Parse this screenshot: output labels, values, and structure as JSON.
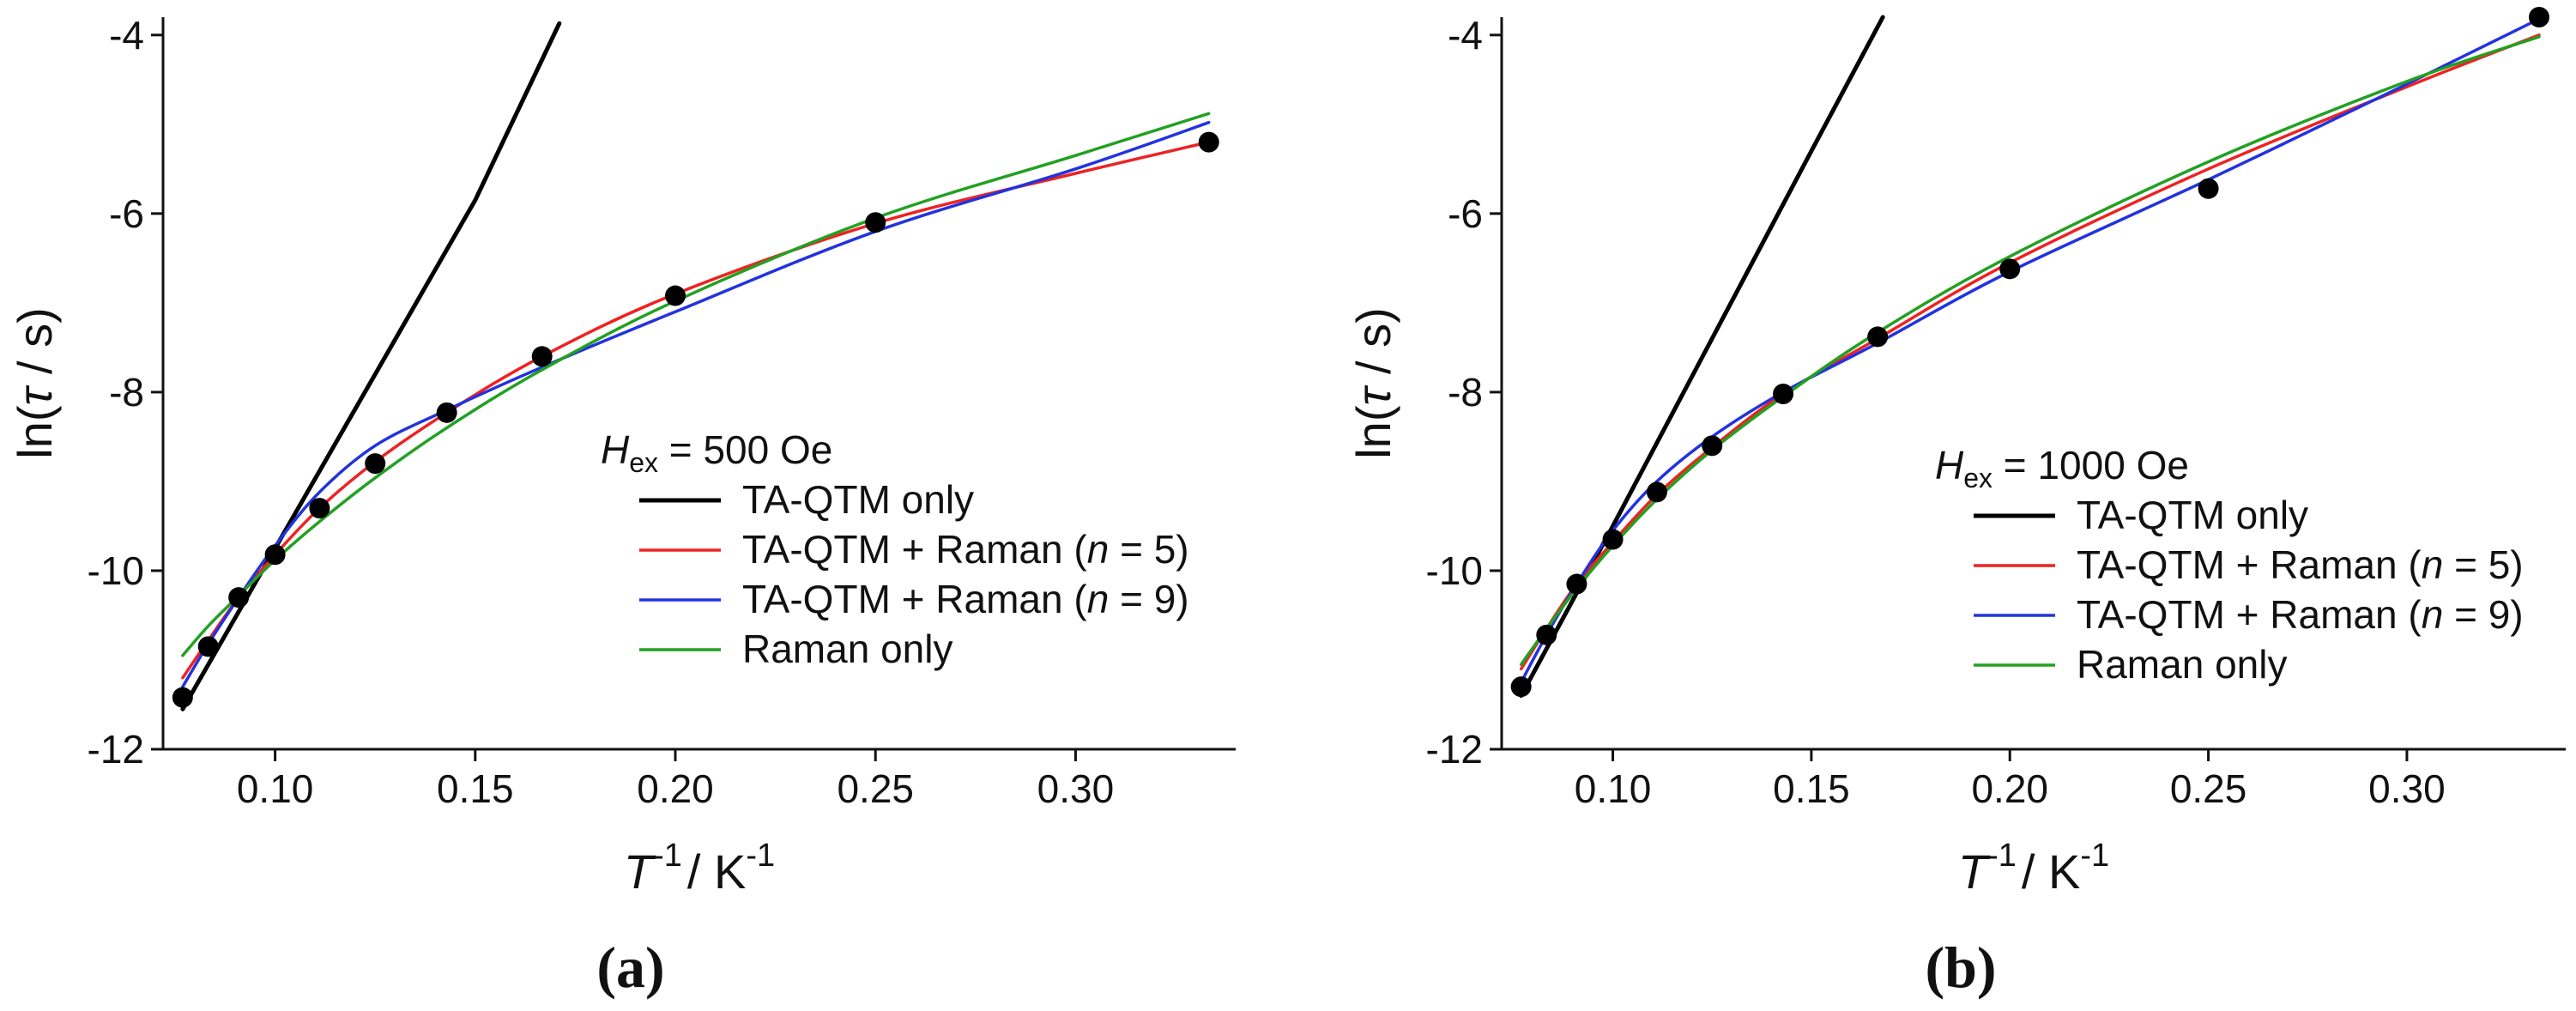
{
  "chart_data": [
    {
      "type": "scatter",
      "panel_label": "(a)",
      "title": "",
      "xlabel": {
        "T": "T",
        "exp1": "-1",
        "sep": "/ K",
        "exp2": "-1"
      },
      "ylabel": {
        "pre": "ln(",
        "tau": "τ",
        "post": " / s)"
      },
      "xlim": [
        0.072,
        0.34
      ],
      "ylim": [
        -12,
        -3.8
      ],
      "xticks": [
        0.1,
        0.15,
        0.2,
        0.25,
        0.3
      ],
      "xtick_labels": [
        "0.10",
        "0.15",
        "0.20",
        "0.25",
        "0.30"
      ],
      "yticks": [
        -12,
        -10,
        -8,
        -6,
        -4
      ],
      "ytick_labels": [
        "-12",
        "-10",
        "-8",
        "-6",
        "-4"
      ],
      "grid": false,
      "legend_title": {
        "H": "H",
        "sub": "ex",
        "rest": " = 500 Oe"
      },
      "legend_position": "center-right",
      "legend_items": [
        {
          "key": "ta",
          "parts": [
            "TA-QTM only"
          ],
          "color": "#000000"
        },
        {
          "key": "r5",
          "parts": [
            "TA-QTM + Raman (",
            "n",
            " = 5)"
          ],
          "color": "#ee2222"
        },
        {
          "key": "r9",
          "parts": [
            "TA-QTM + Raman (",
            "n",
            " = 9)"
          ],
          "color": "#2233dd"
        },
        {
          "key": "raman",
          "parts": [
            "Raman only"
          ],
          "color": "#22a022"
        }
      ],
      "points": {
        "name": "data",
        "x": [
          0.0769,
          0.0833,
          0.0909,
          0.1,
          0.1111,
          0.125,
          0.1429,
          0.1667,
          0.2,
          0.25,
          0.3333
        ],
        "y": [
          -11.42,
          -10.85,
          -10.3,
          -9.82,
          -9.3,
          -8.8,
          -8.23,
          -7.6,
          -6.92,
          -6.1,
          -5.2
        ],
        "color": "#000000"
      },
      "series": [
        {
          "key": "ta",
          "name": "TA-QTM only",
          "color": "#000000",
          "x": [
            0.0769,
            0.1,
            0.125,
            0.15,
            0.171
          ],
          "y": [
            -11.55,
            -9.75,
            -7.8,
            -5.85,
            -3.87
          ]
        },
        {
          "key": "r5",
          "name": "TA-QTM + Raman (n = 5)",
          "color": "#ee2222",
          "x": [
            0.0769,
            0.0833,
            0.0909,
            0.1,
            0.1111,
            0.125,
            0.1429,
            0.1667,
            0.2,
            0.25,
            0.3,
            0.3333
          ],
          "y": [
            -11.2,
            -10.78,
            -10.3,
            -9.82,
            -9.3,
            -8.78,
            -8.23,
            -7.6,
            -6.9,
            -6.11,
            -5.55,
            -5.2
          ]
        },
        {
          "key": "r9",
          "name": "TA-QTM + Raman (n = 9)",
          "color": "#2233dd",
          "x": [
            0.0769,
            0.0833,
            0.0909,
            0.1,
            0.1111,
            0.125,
            0.1429,
            0.1667,
            0.2,
            0.25,
            0.3,
            0.3333
          ],
          "y": [
            -11.3,
            -10.82,
            -10.3,
            -9.72,
            -9.12,
            -8.6,
            -8.2,
            -7.72,
            -7.1,
            -6.2,
            -5.5,
            -4.98
          ]
        },
        {
          "key": "raman",
          "name": "Raman only",
          "color": "#22a022",
          "x": [
            0.0769,
            0.0833,
            0.0909,
            0.1,
            0.1111,
            0.125,
            0.1429,
            0.1667,
            0.2,
            0.25,
            0.3,
            0.3333
          ],
          "y": [
            -10.95,
            -10.62,
            -10.28,
            -9.88,
            -9.45,
            -8.96,
            -8.4,
            -7.75,
            -6.98,
            -6.05,
            -5.35,
            -4.88
          ]
        }
      ]
    },
    {
      "type": "scatter",
      "panel_label": "(b)",
      "title": "",
      "xlabel": {
        "T": "T",
        "exp1": "-1",
        "sep": "/ K",
        "exp2": "-1"
      },
      "ylabel": {
        "pre": "ln(",
        "tau": "τ",
        "post": " / s)"
      },
      "xlim": [
        0.072,
        0.34
      ],
      "ylim": [
        -12,
        -3.8
      ],
      "xticks": [
        0.1,
        0.15,
        0.2,
        0.25,
        0.3
      ],
      "xtick_labels": [
        "0.10",
        "0.15",
        "0.20",
        "0.25",
        "0.30"
      ],
      "yticks": [
        -12,
        -10,
        -8,
        -6,
        -4
      ],
      "ytick_labels": [
        "-12",
        "-10",
        "-8",
        "-6",
        "-4"
      ],
      "grid": false,
      "legend_title": {
        "H": "H",
        "sub": "ex",
        "rest": " = 1000 Oe"
      },
      "legend_position": "center-right",
      "legend_items": [
        {
          "key": "ta",
          "parts": [
            "TA-QTM only"
          ],
          "color": "#000000"
        },
        {
          "key": "r5",
          "parts": [
            "TA-QTM + Raman (",
            "n",
            " = 5)"
          ],
          "color": "#ee2222"
        },
        {
          "key": "r9",
          "parts": [
            "TA-QTM + Raman (",
            "n",
            " = 9)"
          ],
          "color": "#2233dd"
        },
        {
          "key": "raman",
          "parts": [
            "Raman only"
          ],
          "color": "#22a022"
        }
      ],
      "points": {
        "name": "data",
        "x": [
          0.0769,
          0.0833,
          0.0909,
          0.1,
          0.1111,
          0.125,
          0.1429,
          0.1667,
          0.2,
          0.25,
          0.3333
        ],
        "y": [
          -11.3,
          -10.72,
          -10.15,
          -9.65,
          -9.12,
          -8.6,
          -8.02,
          -7.38,
          -6.62,
          -5.72,
          -3.8
        ],
        "color": "#000000"
      },
      "series": [
        {
          "key": "ta",
          "name": "TA-QTM only",
          "color": "#000000",
          "x": [
            0.0769,
            0.1,
            0.125,
            0.15,
            0.168
          ],
          "y": [
            -11.4,
            -9.5,
            -7.4,
            -5.3,
            -3.8
          ]
        },
        {
          "key": "r5",
          "name": "TA-QTM + Raman (n = 5)",
          "color": "#ee2222",
          "x": [
            0.0769,
            0.0833,
            0.0909,
            0.1,
            0.1111,
            0.125,
            0.1429,
            0.1667,
            0.2,
            0.25,
            0.3,
            0.3333
          ],
          "y": [
            -11.1,
            -10.65,
            -10.15,
            -9.68,
            -9.15,
            -8.62,
            -8.02,
            -7.4,
            -6.55,
            -5.5,
            -4.58,
            -4.0
          ]
        },
        {
          "key": "r9",
          "name": "TA-QTM + Raman (n = 9)",
          "color": "#2233dd",
          "x": [
            0.0769,
            0.0833,
            0.0909,
            0.1,
            0.1111,
            0.125,
            0.1429,
            0.1667,
            0.2,
            0.25,
            0.3,
            0.3333
          ],
          "y": [
            -11.25,
            -10.72,
            -10.15,
            -9.55,
            -9.0,
            -8.5,
            -8.0,
            -7.45,
            -6.65,
            -5.62,
            -4.55,
            -3.82
          ]
        },
        {
          "key": "raman",
          "name": "Raman only",
          "color": "#22a022",
          "x": [
            0.0769,
            0.0833,
            0.0909,
            0.1,
            0.1111,
            0.125,
            0.1429,
            0.1667,
            0.2,
            0.25,
            0.3,
            0.3333
          ],
          "y": [
            -11.05,
            -10.65,
            -10.2,
            -9.72,
            -9.2,
            -8.65,
            -8.05,
            -7.33,
            -6.48,
            -5.42,
            -4.52,
            -4.02
          ]
        }
      ]
    }
  ]
}
